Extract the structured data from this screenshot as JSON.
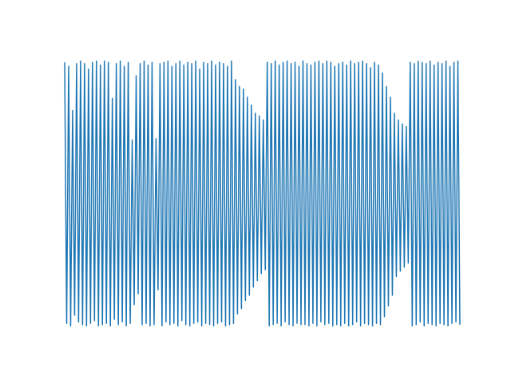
{
  "chart_data": {
    "type": "line",
    "color": "#1f77b4",
    "axis": false,
    "xlim": [
      0,
      199
    ],
    "ylim": [
      -1.1,
      1.1
    ],
    "values": [
      0.98,
      -0.97,
      0.95,
      -0.99,
      0.62,
      -0.91,
      0.97,
      -0.96,
      0.99,
      -0.98,
      0.97,
      -0.99,
      0.93,
      -0.97,
      0.98,
      -0.95,
      0.99,
      -0.99,
      0.96,
      -0.98,
      0.99,
      -0.97,
      0.98,
      -0.99,
      0.71,
      -0.94,
      0.97,
      -0.98,
      0.99,
      -0.96,
      0.95,
      -0.99,
      0.98,
      -0.97,
      0.4,
      -0.83,
      0.88,
      -0.75,
      0.97,
      -0.98,
      0.99,
      -0.97,
      0.96,
      -0.99,
      0.98,
      -0.98,
      0.41,
      -0.72,
      0.97,
      -0.99,
      0.98,
      -0.96,
      0.99,
      -0.98,
      0.95,
      -0.97,
      0.97,
      -0.99,
      0.99,
      -0.95,
      0.96,
      -0.98,
      0.98,
      -0.99,
      0.97,
      -0.97,
      0.99,
      -0.96,
      0.93,
      -0.99,
      0.98,
      -0.97,
      0.97,
      -0.98,
      0.99,
      -0.99,
      0.96,
      -0.97,
      0.98,
      -0.96,
      0.97,
      -0.99,
      0.95,
      -0.98,
      0.99,
      -0.97,
      0.85,
      -0.9,
      0.8,
      -0.86,
      0.78,
      -0.8,
      0.72,
      -0.76,
      0.66,
      -0.7,
      0.6,
      -0.65,
      0.58,
      -0.6,
      0.55,
      -0.57,
      0.98,
      -0.99,
      0.97,
      -0.98,
      0.99,
      -0.97,
      0.96,
      -0.99,
      0.98,
      -0.96,
      0.99,
      -0.98,
      0.97,
      -0.99,
      0.98,
      -0.97,
      0.95,
      -0.98,
      0.99,
      -0.98,
      0.97,
      -0.99,
      0.96,
      -0.97,
      0.98,
      -0.99,
      0.99,
      -0.96,
      0.97,
      -0.98,
      0.99,
      -0.97,
      0.98,
      -0.99,
      0.95,
      -0.98,
      0.97,
      -0.99,
      0.98,
      -0.97,
      0.96,
      -0.99,
      0.99,
      -0.98,
      0.97,
      -0.96,
      0.98,
      -0.99,
      0.99,
      -0.97,
      0.97,
      -0.98,
      0.94,
      -0.99,
      0.98,
      -0.97,
      0.96,
      -0.98,
      0.9,
      -0.92,
      0.8,
      -0.84,
      0.72,
      -0.76,
      0.6,
      -0.62,
      0.55,
      -0.58,
      0.52,
      -0.55,
      0.5,
      -0.52,
      0.98,
      -0.99,
      0.97,
      -0.98,
      0.99,
      -0.96,
      0.98,
      -0.99,
      0.97,
      -0.97,
      0.99,
      -0.98,
      0.96,
      -0.99,
      0.98,
      -0.97,
      0.97,
      -0.98,
      0.99,
      -0.99,
      0.95,
      -0.97,
      0.98,
      -0.96,
      0.99,
      -0.98
    ]
  }
}
